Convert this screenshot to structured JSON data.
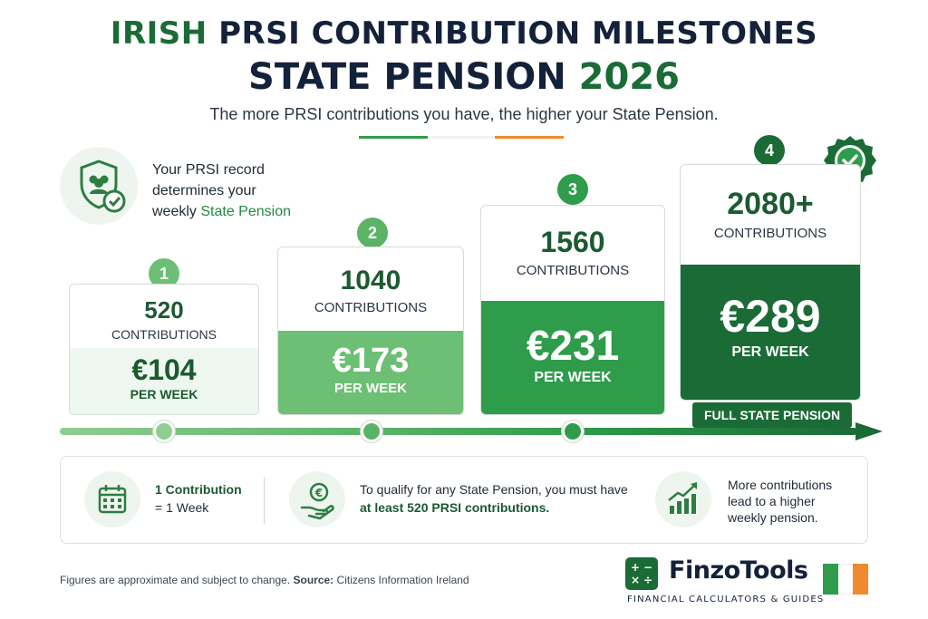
{
  "title": {
    "line1_green": "IRISH",
    "line1_rest": "PRSI CONTRIBUTION MILESTONES",
    "line2_dark": "STATE PENSION",
    "line2_green": "2026",
    "subtitle": "The more PRSI contributions you have, the higher your State Pension."
  },
  "record": {
    "line1": "Your PRSI record",
    "line2": "determines your",
    "line3_prefix": "weekly",
    "line3_green": "State Pension",
    "icon": "shield-people-check-icon"
  },
  "milestones": [
    {
      "step": "1",
      "count": "520",
      "label": "CONTRIBUTIONS",
      "amount": "€104",
      "per": "PER WEEK"
    },
    {
      "step": "2",
      "count": "1040",
      "label": "CONTRIBUTIONS",
      "amount": "€173",
      "per": "PER WEEK"
    },
    {
      "step": "3",
      "count": "1560",
      "label": "CONTRIBUTIONS",
      "amount": "€231",
      "per": "PER WEEK"
    },
    {
      "step": "4",
      "count": "2080+",
      "label": "CONTRIBUTIONS",
      "amount": "€289",
      "per": "PER WEEK"
    }
  ],
  "full_pension_label": "FULL STATE PENSION",
  "info": {
    "item1_line1": "1 Contribution",
    "item1_line2": "= 1 Week",
    "item2_line1": "To qualify for any State Pension, you must have",
    "item2_line2": "at least 520 PRSI contributions.",
    "item3_line1": "More contributions",
    "item3_line2": "lead to a higher",
    "item3_line3": "weekly pension."
  },
  "footnote": {
    "text": "Figures are approximate and subject to change.",
    "source_label": "Source:",
    "source": "Citizens Information Ireland"
  },
  "brand": {
    "name": "FinzoTools",
    "tagline": "FINANCIAL CALCULATORS & GUIDES",
    "logo_symbols": "+ − × ÷"
  },
  "colors": {
    "dark_green": "#1b6b36",
    "green": "#2e9c4a",
    "light_green": "#6cbf74",
    "pale_green": "#eef7ef",
    "navy": "#14213a",
    "irish_orange": "#f08a2c"
  }
}
